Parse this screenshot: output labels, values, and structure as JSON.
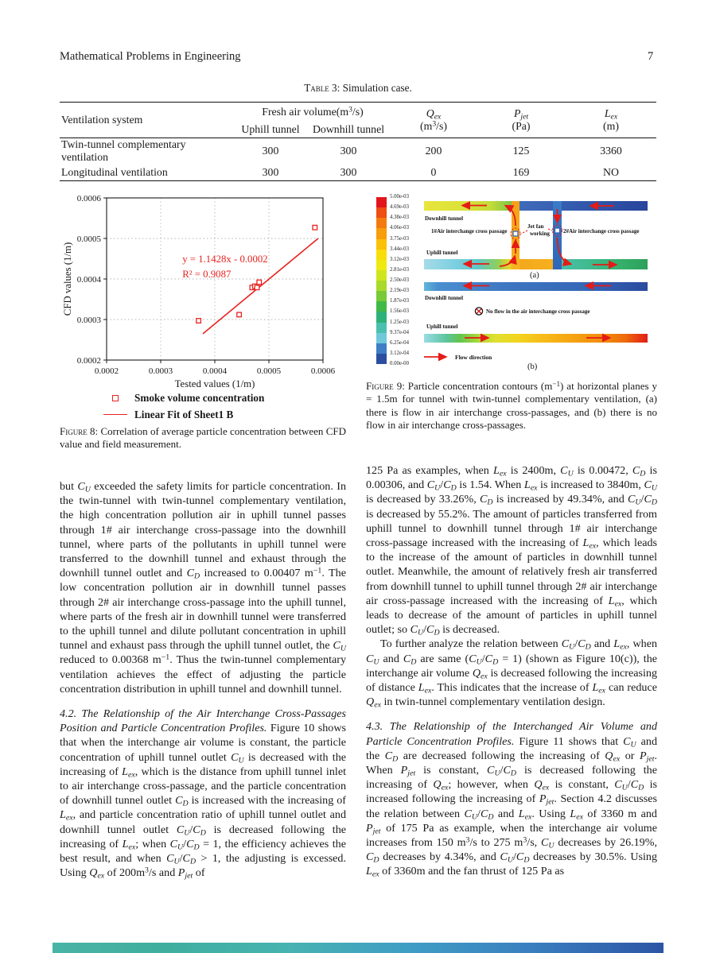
{
  "page": {
    "header_left": "Mathematical Problems in Engineering",
    "page_number": "7"
  },
  "table": {
    "caption_label": "Table 3:",
    "caption_text": " Simulation case.",
    "headers": {
      "col_system": "Ventilation system",
      "fresh_air_group": "Fresh air volume(m[sup]3[/sup]/s)",
      "uphill": "Uphill tunnel",
      "downhill": "Downhill tunnel",
      "qex_line1": "[i]Q[/i][sub][i]ex[/i][/sub]",
      "qex_line2": "(m[sup]3[/sup]/s)",
      "pjet_line1": "[i]P[/i][sub][i]jet[/i][/sub]",
      "pjet_line2": "(Pa)",
      "lex_line1": "[i]L[/i][sub][i]ex[/i][/sub]",
      "lex_line2": "(m)"
    },
    "rows": [
      {
        "system": "Twin-tunnel complementary ventilation",
        "uphill": "300",
        "downhill": "300",
        "qex": "200",
        "pjet": "125",
        "lex": "3360"
      },
      {
        "system": "Longitudinal ventilation",
        "uphill": "300",
        "downhill": "300",
        "qex": "0",
        "pjet": "169",
        "lex": "NO"
      }
    ]
  },
  "chart_data": {
    "type": "scatter",
    "xlabel": "Tested values (1/m)",
    "ylabel": "CFD values (1/m)",
    "xlim": [
      0.0002,
      0.0006
    ],
    "ylim": [
      0.0002,
      0.0006
    ],
    "xticks": [
      0.0002,
      0.0003,
      0.0004,
      0.0005,
      0.0006
    ],
    "yticks": [
      0.0002,
      0.0003,
      0.0004,
      0.0005,
      0.0006
    ],
    "grid": "dotted",
    "accent_color": "#e8231f",
    "points": [
      [
        0.00037,
        0.000297
      ],
      [
        0.000445,
        0.000312
      ],
      [
        0.000469,
        0.000379
      ],
      [
        0.000474,
        0.000382
      ],
      [
        0.000478,
        0.000379
      ],
      [
        0.000482,
        0.000392
      ],
      [
        0.000585,
        0.000527
      ]
    ],
    "fit_line": {
      "x1": 0.000378,
      "y1": 0.000265,
      "x2": 0.000591,
      "y2": 0.0005
    },
    "equation": "y = 1.1428x - 0.0002",
    "r_squared": "R² = 0.9087",
    "series_labels": [
      "Smoke volume concentration",
      "Linear Fit of Sheet1 B"
    ]
  },
  "figure8": {
    "legend": {
      "item1": "Smoke volume concentration",
      "item2": "Linear Fit of Sheet1 B"
    },
    "caption_label": "Figure 8:",
    "caption_text": " Correlation of average particle concentration between CFD value and field measurement."
  },
  "figure9": {
    "colorbar": {
      "labels": [
        "5.00e-03",
        "4.69e-03",
        "4.38e-03",
        "4.06e-03",
        "3.75e-03",
        "3.44e-03",
        "3.12e-03",
        "2.81e-03",
        "2.50e-03",
        "2.19e-03",
        "1.87e-03",
        "1.56e-03",
        "1.25e-03",
        "9.37e-04",
        "6.25e-04",
        "3.12e-04",
        "0.00e-00"
      ],
      "colors": [
        "#e1161d",
        "#ee4d13",
        "#f47a10",
        "#f89d0c",
        "#fbc008",
        "#f9dd09",
        "#eeea11",
        "#cfe51f",
        "#a9da2b",
        "#78ca38",
        "#41b946",
        "#2eb277",
        "#4cc0ae",
        "#70c8da",
        "#3f7ec6",
        "#2c4da0"
      ]
    },
    "labels": {
      "downhill_a": "Downhill tunnel",
      "passage1": "1#Air interchange cross passage",
      "jetfan_line1": "Jet fan",
      "jetfan_line2": "working",
      "passage2": "2#Air interchange cross passage",
      "uphill_a": "Uphill tunnel",
      "panel_a": "(a)",
      "downhill_b": "Downhill tunnel",
      "noflow": "No flow in the air interchange cross passage",
      "uphill_b": "Uphill tunnel",
      "flow_direction": "Flow direction",
      "panel_b": "(b)"
    },
    "caption_label": "Figure 9:",
    "caption_text": " Particle concentration contours (m[sup]−1[/sup]) at horizontal planes y = 1.5m for tunnel with twin-tunnel complementary ventilation, (a) there is flow in air interchange cross-passages, and (b) there is no flow in air interchange cross-passages."
  },
  "body": {
    "left": {
      "p1": "but [i]C[/i][sub][i]U[/i][/sub] exceeded the safety limits for particle concentration. In the twin-tunnel with twin-tunnel complementary ventilation, the high concentration pollution air in uphill tunnel passes through 1# air interchange cross-passage into the downhill tunnel, where parts of the pollutants in uphill tunnel were transferred to the downhill tunnel and exhaust through the downhill tunnel outlet and [i]C[/i][sub][i]D[/i][/sub] increased to 0.00407 m[sup]−1[/sup]. The low concentration pollution air in downhill tunnel passes through 2# air interchange cross-passage into the uphill tunnel, where parts of the fresh air in downhill tunnel were transferred to the uphill tunnel and dilute pollutant concentration in uphill tunnel and exhaust pass through the uphill tunnel outlet, the [i]C[/i][sub][i]U[/i][/sub] reduced to 0.00368 m[sup]−1[/sup]. Thus the twin-tunnel complementary ventilation achieves the effect of adjusting the particle concentration distribution in uphill tunnel and downhill tunnel.",
      "s42_heading": "4.2. The Relationship of the Air Interchange Cross-Passages Position and Particle Concentration Profiles.",
      "s42_body": " Figure 10 shows that when the interchange air volume is constant, the particle concentration of uphill tunnel outlet [i]C[/i][sub][i]U[/i][/sub] is decreased with the increasing of [i]L[/i][sub][i]ex[/i][/sub], which is the distance from uphill tunnel inlet to air interchange cross-passage, and the particle concentration of downhill tunnel outlet [i]C[/i][sub][i]D[/i][/sub] is increased with the increasing of [i]L[/i][sub][i]ex[/i][/sub], and particle concentration ratio of uphill tunnel outlet and downhill tunnel outlet [i]C[/i][sub][i]U[/i][/sub]/[i]C[/i][sub][i]D[/i][/sub] is decreased following the increasing of [i]L[/i][sub][i]ex[/i][/sub]; when [i]C[/i][sub][i]U[/i][/sub]/[i]C[/i][sub][i]D[/i][/sub] = 1, the efficiency achieves the best result, and when [i]C[/i][sub][i]U[/i][/sub]/[i]C[/i][sub][i]D[/i][/sub] > 1, the adjusting is excessed. Using [i]Q[/i][sub][i]ex[/i][/sub] of 200m[sup]3[/sup]/s and [i]P[/i][sub][i]jet[/i][/sub] of"
    },
    "right": {
      "p1": "125 Pa as examples, when [i]L[/i][sub][i]ex[/i][/sub] is 2400m, [i]C[/i][sub][i]U[/i][/sub] is 0.00472, [i]C[/i][sub][i]D[/i][/sub] is 0.00306, and [i]C[/i][sub][i]U[/i][/sub]/[i]C[/i][sub][i]D[/i][/sub] is 1.54. When [i]L[/i][sub][i]ex[/i][/sub] is increased to 3840m, [i]C[/i][sub][i]U[/i][/sub] is decreased by 33.26%, [i]C[/i][sub][i]D[/i][/sub] is increased by 49.34%, and [i]C[/i][sub][i]U[/i][/sub]/[i]C[/i][sub][i]D[/i][/sub] is decreased by 55.2%. The amount of particles transferred from uphill tunnel to downhill tunnel through 1# air interchange cross-passage increased with the increasing of [i]L[/i][sub][i]ex[/i][/sub], which leads to the increase of the amount of particles in downhill tunnel outlet. Meanwhile, the amount of relatively fresh air transferred from downhill tunnel to uphill tunnel through 2# air interchange air cross-passage increased with the increasing of [i]L[/i][sub][i]ex[/i][/sub], which leads to decrease of the amount of particles in uphill tunnel outlet; so [i]C[/i][sub][i]U[/i][/sub]/[i]C[/i][sub][i]D[/i][/sub] is decreased.",
      "p2": "To further analyze the relation between [i]C[/i][sub][i]U[/i][/sub]/[i]C[/i][sub][i]D[/i][/sub] and [i]L[/i][sub][i]ex[/i][/sub], when [i]C[/i][sub][i]U[/i][/sub] and [i]C[/i][sub][i]D[/i][/sub] are same ([i]C[/i][sub][i]U[/i][/sub]/[i]C[/i][sub][i]D[/i][/sub] = 1) (shown as Figure 10(c)), the interchange air volume [i]Q[/i][sub][i]ex[/i][/sub] is decreased following the increasing of distance [i]L[/i][sub][i]ex[/i][/sub]. This indicates that the increase of [i]L[/i][sub][i]ex[/i][/sub] can reduce [i]Q[/i][sub][i]ex[/i][/sub] in twin-tunnel complementary ventilation design.",
      "s43_heading": "4.3. The Relationship of the Interchanged Air Volume and Particle Concentration Profiles.",
      "s43_body": " Figure 11 shows that [i]C[/i][sub][i]U[/i][/sub] and the [i]C[/i][sub][i]D[/i][/sub] are decreased following the increasing of [i]Q[/i][sub][i]ex[/i][/sub] or [i]P[/i][sub][i]jet[/i][/sub]. When [i]P[/i][sub][i]jet[/i][/sub] is constant, [i]C[/i][sub][i]U[/i][/sub]/[i]C[/i][sub][i]D[/i][/sub] is decreased following the increasing of [i]Q[/i][sub][i]ex[/i][/sub]; however, when [i]Q[/i][sub][i]ex[/i][/sub] is constant, [i]C[/i][sub][i]U[/i][/sub]/[i]C[/i][sub][i]D[/i][/sub] is increased following the increasing of [i]P[/i][sub][i]jet[/i][/sub]. Section 4.2 discusses the relation between [i]C[/i][sub][i]U[/i][/sub]/[i]C[/i][sub][i]D[/i][/sub] and [i]L[/i][sub][i]ex[/i][/sub]. Using [i]L[/i][sub][i]ex[/i][/sub] of 3360 m and [i]P[/i][sub][i]jet[/i][/sub] of 175 Pa as example, when the interchange air volume increases from 150 m[sup]3[/sup]/s to 275 m[sup]3[/sup]/s, [i]C[/i][sub][i]U[/i][/sub] decreases by 26.19%, [i]C[/i][sub][i]D[/i][/sub] decreases by 4.34%, and [i]C[/i][sub][i]U[/i][/sub]/[i]C[/i][sub][i]D[/i][/sub] decreases by 30.5%. Using [i]L[/i][sub][i]ex[/i][/sub] of 3360m and the fan thrust of 125 Pa as"
    }
  }
}
